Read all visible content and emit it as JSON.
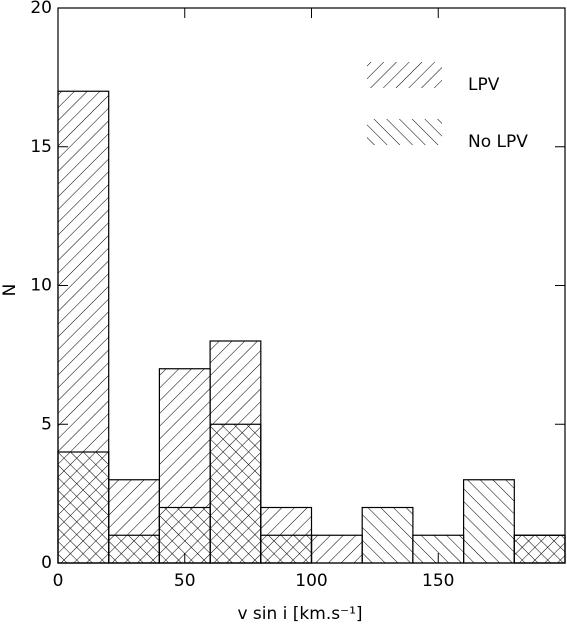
{
  "chart_data": {
    "type": "histogram",
    "x_label": "v sin i [km.s⁻¹]",
    "y_label": "N",
    "bins": [
      0,
      20,
      40,
      60,
      80,
      100,
      120,
      140,
      160,
      180,
      200
    ],
    "series": [
      {
        "name": "LPV",
        "color": "#000000",
        "values": [
          17,
          3,
          7,
          8,
          2,
          1,
          0,
          0,
          0,
          1
        ]
      },
      {
        "name": "No LPV",
        "color": "#000000",
        "values": [
          4,
          1,
          2,
          5,
          1,
          0,
          2,
          1,
          3,
          1
        ]
      }
    ],
    "xlim": [
      0,
      200
    ],
    "xticks": [
      0,
      50,
      100,
      150
    ],
    "ylim": [
      0,
      20
    ],
    "yticks": [
      0,
      5,
      10,
      15,
      20
    ],
    "legend": "upper right"
  }
}
